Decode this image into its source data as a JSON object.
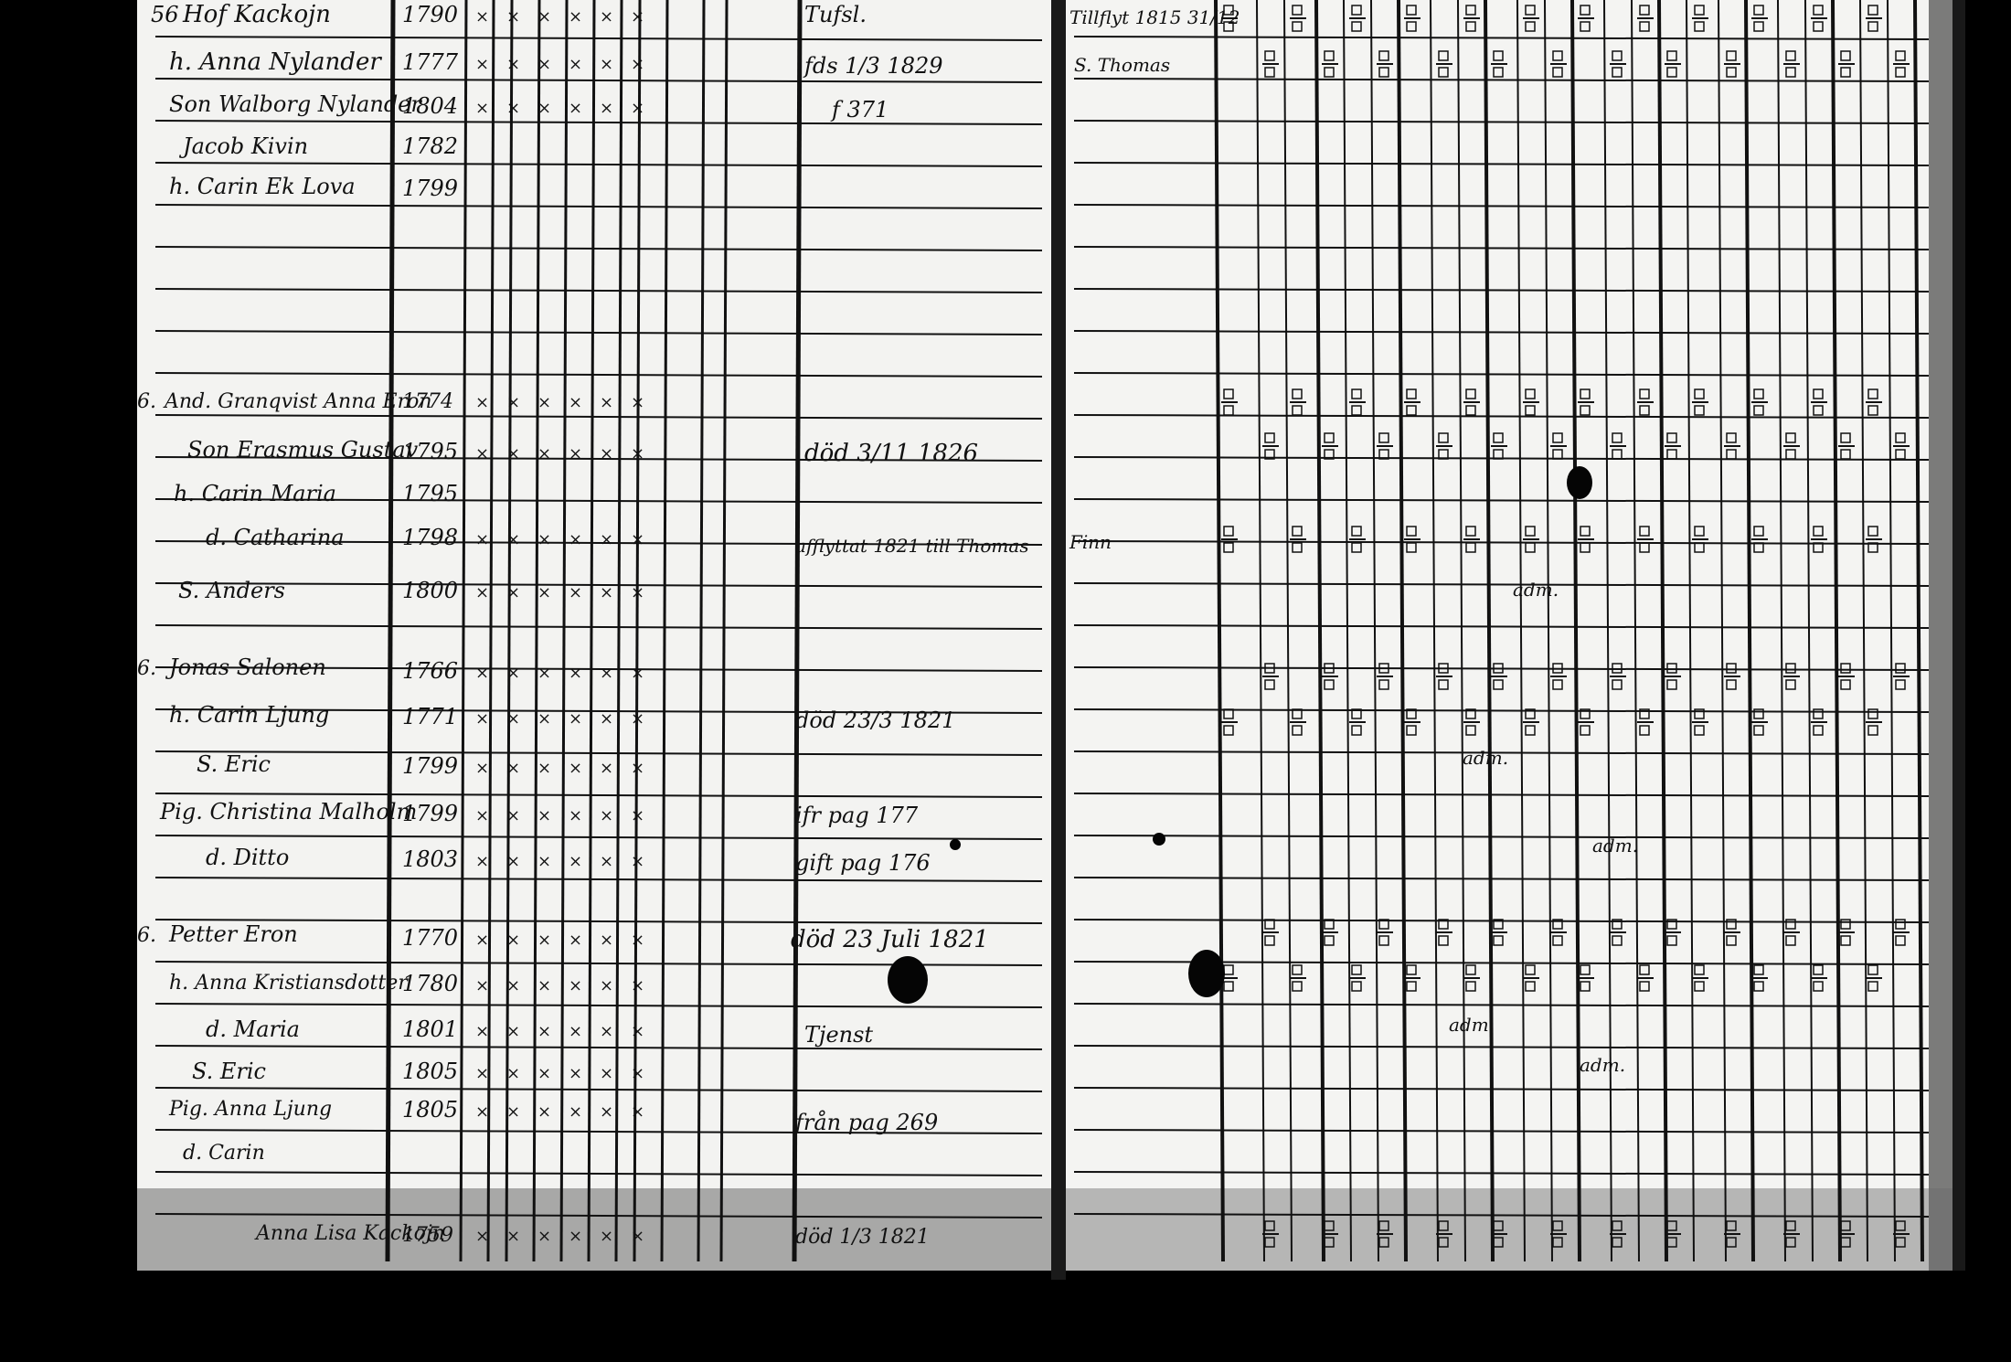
{
  "page_number": "56",
  "left_page": {
    "households": [
      {
        "number": "",
        "rows": [
          {
            "name": "Hof Kackojn",
            "year": "1790",
            "note": "Tufsl."
          },
          {
            "name": "h. Anna Nylander",
            "year": "1777",
            "note": "fds 1/3 1829"
          },
          {
            "name": "Son Walborg Nylander",
            "year": "1804",
            "note": "f 371"
          },
          {
            "name": "Jacob Kivin",
            "year": "1782",
            "note": ""
          },
          {
            "name": "h. Carin Ek Lova",
            "year": "1799",
            "note": ""
          }
        ]
      },
      {
        "number": "6.",
        "rows": [
          {
            "name": "And. Granqvist Anna Eron",
            "year": "1774",
            "note": ""
          },
          {
            "name": "Son Erasmus Gustav",
            "year": "1795",
            "note": "död 3/11 1826"
          },
          {
            "name": "h. Carin Maria",
            "year": "1795",
            "note": ""
          },
          {
            "name": "d. Catharina",
            "year": "1798",
            "note": "afflyttat 1821 till Thomas"
          },
          {
            "name": "S. Anders",
            "year": "1800",
            "note": ""
          }
        ]
      },
      {
        "number": "6.",
        "rows": [
          {
            "name": "Jonas Salonen",
            "year": "1766",
            "note": ""
          },
          {
            "name": "h. Carin Ljung",
            "year": "1771",
            "note": "död 23/3 1821"
          },
          {
            "name": "S. Eric",
            "year": "1799",
            "note": ""
          },
          {
            "name": "Pig. Christina Malholm",
            "year": "1799",
            "note": "ifr pag 177"
          },
          {
            "name": "d. Ditto",
            "year": "1803",
            "note": "gift pag 176"
          }
        ]
      },
      {
        "number": "6.",
        "rows": [
          {
            "name": "Petter Eron",
            "year": "1770",
            "note": "död 23 Juli 1821"
          },
          {
            "name": "h. Anna Kristiansdotter",
            "year": "1780",
            "note": ""
          },
          {
            "name": "d. Maria",
            "year": "1801",
            "note": "Tjenst"
          },
          {
            "name": "S. Eric",
            "year": "1805",
            "note": ""
          },
          {
            "name": "Pig. Anna Ljung",
            "year": "1805",
            "note": "från pag 269"
          },
          {
            "name": "d. Carin",
            "year": "",
            "note": ""
          }
        ]
      }
    ],
    "footer_row": {
      "name": "Anna Lisa Kackojn",
      "year": "1759",
      "note": "död 1/3 1821"
    }
  },
  "right_page": {
    "margin_notes": [
      {
        "text": "Tillflyt 1815 31/12"
      },
      {
        "text": "S. Thomas"
      },
      {
        "text": "Finn"
      }
    ],
    "cell_marks": [
      "adm.",
      "adm.",
      "adm.",
      "adm.",
      "adm."
    ]
  },
  "colors": {
    "paper": "#f4f4f2",
    "ink": "#111111",
    "background": "#000000"
  }
}
